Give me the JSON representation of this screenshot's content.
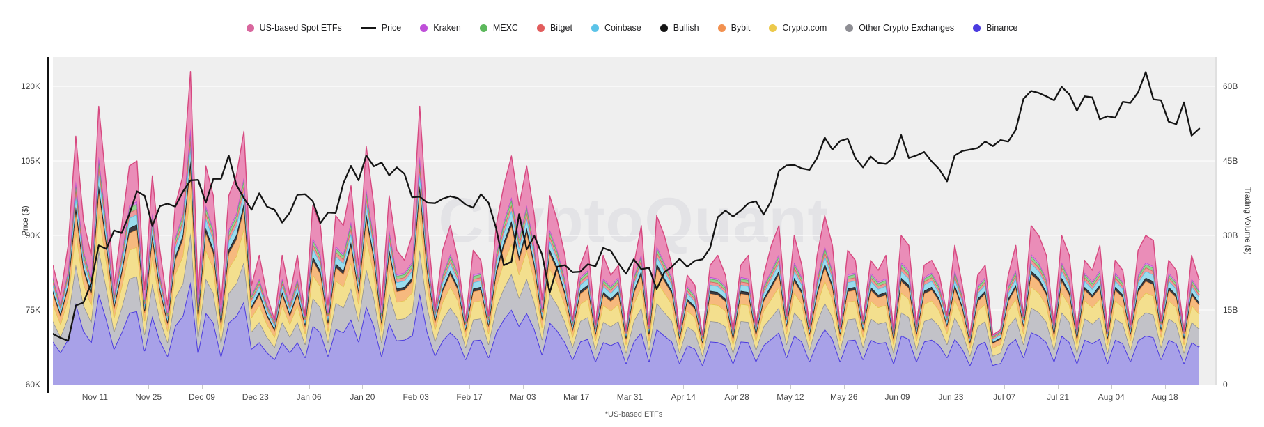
{
  "watermark": "CryptoQuant",
  "footnote": "*US-based ETFs",
  "axes": {
    "left": {
      "title": "Price ($)"
    },
    "right": {
      "title": "Trading Volume ($)"
    }
  },
  "legend": {
    "items": [
      {
        "key": "us-based-spot-etfs",
        "label": "US-based Spot ETFs",
        "marker": "dot",
        "color": "#d9679e"
      },
      {
        "key": "price",
        "label": "Price",
        "marker": "line",
        "color": "#141414"
      },
      {
        "key": "kraken",
        "label": "Kraken",
        "marker": "dot",
        "color": "#bf4fd9"
      },
      {
        "key": "mexc",
        "label": "MEXC",
        "marker": "dot",
        "color": "#5cb85c"
      },
      {
        "key": "bitget",
        "label": "Bitget",
        "marker": "dot",
        "color": "#e25d5d"
      },
      {
        "key": "coinbase",
        "label": "Coinbase",
        "marker": "dot",
        "color": "#5bc3e8"
      },
      {
        "key": "bullish",
        "label": "Bullish",
        "marker": "dot",
        "color": "#141414"
      },
      {
        "key": "bybit",
        "label": "Bybit",
        "marker": "dot",
        "color": "#f29150"
      },
      {
        "key": "crypto-com",
        "label": "Crypto.com",
        "marker": "dot",
        "color": "#ecc94b"
      },
      {
        "key": "other-crypto-exchanges",
        "label": "Other Crypto Exchanges",
        "marker": "dot",
        "color": "#8e8e94"
      },
      {
        "key": "binance",
        "label": "Binance",
        "marker": "dot",
        "color": "#4b3be0"
      }
    ]
  },
  "chart_data": {
    "type": "area",
    "stacked": true,
    "x_start_date": "2024-10-31",
    "x_end_date": "2025-08-27",
    "step_days": 2,
    "span_days": 300,
    "price_unit": "USD thousands",
    "volume_unit": "USD billions",
    "ylim_price": [
      60000,
      125900
    ],
    "ylim_volume_billions": [
      0,
      65.9
    ],
    "grid": "horizontal-only",
    "y_ticks_price": [
      {
        "label": "120K",
        "value": 120
      },
      {
        "label": "105K",
        "value": 105
      },
      {
        "label": "90K",
        "value": 90
      },
      {
        "label": "75K",
        "value": 75
      },
      {
        "label": "60K",
        "value": 60
      }
    ],
    "y_ticks_volume": [
      {
        "label": "60B",
        "value": 60
      },
      {
        "label": "45B",
        "value": 45
      },
      {
        "label": "30B",
        "value": 30
      },
      {
        "label": "15B",
        "value": 15
      },
      {
        "label": "0",
        "value": 0
      }
    ],
    "x_ticks": [
      {
        "label": "Nov 11",
        "day": 11
      },
      {
        "label": "Nov 25",
        "day": 25
      },
      {
        "label": "Dec 09",
        "day": 39
      },
      {
        "label": "Dec 23",
        "day": 53
      },
      {
        "label": "Jan 06",
        "day": 67
      },
      {
        "label": "Jan 20",
        "day": 81
      },
      {
        "label": "Feb 03",
        "day": 95
      },
      {
        "label": "Feb 17",
        "day": 109
      },
      {
        "label": "Mar 03",
        "day": 123
      },
      {
        "label": "Mar 17",
        "day": 137
      },
      {
        "label": "Mar 31",
        "day": 151
      },
      {
        "label": "Apr 14",
        "day": 165
      },
      {
        "label": "Apr 28",
        "day": 179
      },
      {
        "label": "May 12",
        "day": 193
      },
      {
        "label": "May 26",
        "day": 207
      },
      {
        "label": "Jun 09",
        "day": 221
      },
      {
        "label": "Jun 23",
        "day": 235
      },
      {
        "label": "Jul 07",
        "day": 249
      },
      {
        "label": "Jul 21",
        "day": 263
      },
      {
        "label": "Aug 04",
        "day": 277
      },
      {
        "label": "Aug 18",
        "day": 291
      }
    ],
    "price_series": {
      "name": "Price",
      "color": "#141414",
      "values": [
        70.2,
        69.4,
        68.8,
        75.9,
        76.5,
        80.4,
        88.0,
        87.3,
        91.0,
        90.5,
        94.3,
        98.9,
        98.0,
        91.9,
        95.9,
        96.4,
        95.8,
        98.8,
        101.1,
        101.2,
        96.6,
        101.4,
        101.4,
        106.1,
        100.2,
        97.5,
        95.2,
        98.5,
        95.8,
        95.2,
        92.6,
        94.6,
        98.2,
        98.3,
        96.9,
        92.5,
        94.6,
        94.5,
        100.5,
        104.0,
        101.1,
        106.1,
        103.9,
        104.7,
        102.1,
        103.7,
        102.4,
        97.7,
        97.8,
        96.6,
        96.5,
        97.4,
        97.9,
        97.5,
        96.2,
        95.6,
        98.3,
        96.6,
        91.4,
        84.0,
        84.7,
        94.3,
        87.2,
        89.9,
        86.2,
        78.5,
        83.7,
        84.0,
        82.6,
        82.7,
        84.2,
        83.8,
        87.5,
        86.9,
        84.4,
        82.3,
        85.2,
        83.2,
        83.5,
        79.2,
        82.6,
        83.7,
        85.3,
        83.7,
        84.9,
        85.2,
        87.5,
        93.7,
        95.0,
        93.8,
        95.0,
        96.5,
        96.9,
        94.2,
        97.0,
        103.0,
        104.1,
        104.2,
        103.5,
        103.2,
        105.6,
        109.7,
        107.3,
        109.0,
        109.5,
        105.6,
        103.7,
        105.9,
        104.6,
        104.4,
        105.7,
        110.2,
        105.6,
        106.1,
        106.8,
        104.9,
        103.3,
        100.9,
        106.1,
        107.0,
        107.3,
        107.6,
        108.9,
        108.0,
        109.2,
        108.9,
        111.3,
        117.5,
        119.1,
        118.7,
        118.0,
        117.2,
        119.9,
        118.4,
        115.1,
        118.0,
        117.8,
        113.4,
        114.0,
        113.7,
        116.9,
        116.7,
        118.8,
        122.9,
        117.4,
        117.2,
        112.9,
        112.4,
        116.8,
        110.1,
        111.5
      ]
    },
    "total_volume": [
      24,
      18,
      28,
      50,
      33,
      26,
      56,
      40,
      20,
      32,
      44,
      45,
      19,
      42,
      27,
      16,
      36,
      42,
      63,
      18,
      44,
      38,
      16,
      38,
      42,
      51,
      20,
      26,
      18,
      13,
      26,
      18,
      26,
      14,
      36,
      32,
      16,
      34,
      32,
      40,
      24,
      48,
      36,
      16,
      38,
      27,
      25,
      30,
      56,
      32,
      15,
      27,
      32,
      25,
      13,
      27,
      25,
      14,
      32,
      40,
      46,
      36,
      44,
      34,
      17,
      38,
      33,
      26,
      13,
      24,
      28,
      12,
      26,
      22,
      24,
      11,
      24,
      32,
      12,
      34,
      30,
      24,
      11,
      22,
      20,
      10,
      24,
      26,
      22,
      11,
      24,
      26,
      12,
      22,
      28,
      32,
      14,
      30,
      24,
      12,
      26,
      34,
      28,
      12,
      27,
      25,
      13,
      25,
      23,
      26,
      11,
      30,
      28,
      12,
      24,
      25,
      22,
      14,
      28,
      20,
      10,
      22,
      24,
      10,
      11,
      22,
      28,
      14,
      32,
      30,
      26,
      12,
      30,
      26,
      11,
      25,
      23,
      28,
      11,
      25,
      23,
      12,
      27,
      30,
      29,
      13,
      25,
      23,
      11,
      26,
      21
    ],
    "stack_series_bottom_to_top": [
      {
        "name": "Binance",
        "share": 0.4,
        "fill": "#a8a1e8",
        "stroke": "#4b3be0"
      },
      {
        "name": "Other Crypto Exchanges",
        "share": 0.19,
        "fill": "#c2c2c8",
        "stroke": "#8a8a90"
      },
      {
        "name": "Crypto.com",
        "share": 0.16,
        "fill": "#f3df8e",
        "stroke": "#e3c44c"
      },
      {
        "name": "Bybit",
        "share": 0.095,
        "fill": "#f6b97e",
        "stroke": "#ee9045"
      },
      {
        "name": "Bullish",
        "share": 0.028,
        "fill": "#3a3a40",
        "stroke": "#17171a"
      },
      {
        "name": "Coinbase",
        "share": 0.055,
        "fill": "#9adcee",
        "stroke": "#4fbfe4"
      },
      {
        "name": "Bitget",
        "share": 0.03,
        "fill": "#ef9a9c",
        "stroke": "#e0575a"
      },
      {
        "name": "MEXC",
        "share": 0.027,
        "fill": "#94d490",
        "stroke": "#57b357"
      },
      {
        "name": "Kraken",
        "share": 0.015,
        "fill": "#d98fe4",
        "stroke": "#bb4bd2"
      }
    ],
    "etf_series": {
      "name": "US-based Spot ETFs",
      "fill": "#ea8db8",
      "stroke": "#d6487f",
      "share_of_total_rule": {
        "total_gte_26": 0.18,
        "total_gte_16": 0.1,
        "weekend_low": 0.02
      }
    }
  }
}
